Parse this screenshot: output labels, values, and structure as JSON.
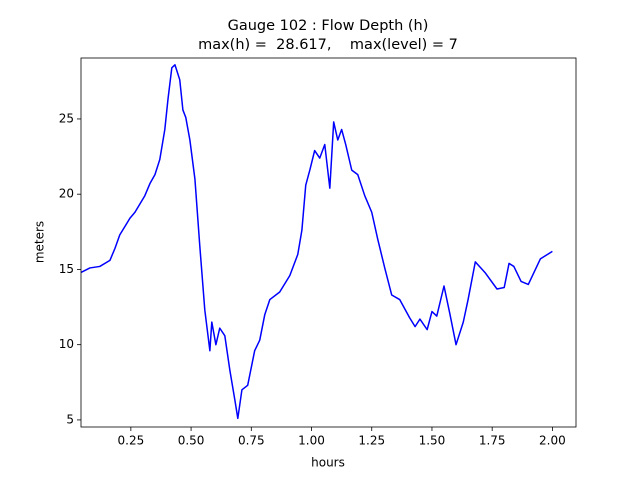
{
  "chart_data": {
    "type": "line",
    "title": [
      "Gauge 102 : Flow Depth (h)",
      "max(h) =  28.617,    max(level) = 7"
    ],
    "x_label": "hours",
    "y_label": "meters",
    "xlim": [
      0.043,
      2.098
    ],
    "ylim": [
      4.53,
      29.05
    ],
    "xticks": [
      0.25,
      {
        "value": 0.5,
        "label": "0.50"
      },
      0.75,
      {
        "value": 1.0,
        "label": "1.00"
      },
      1.25,
      {
        "value": 1.5,
        "label": "1.50"
      },
      1.75,
      {
        "value": 2.0,
        "label": "2.00"
      }
    ],
    "yticks": [
      5,
      10,
      15,
      20,
      25
    ],
    "grid": false,
    "series": [
      {
        "name": "h",
        "color": "#0000ff",
        "x": [
          0.043,
          0.08,
          0.121,
          0.163,
          0.184,
          0.204,
          0.246,
          0.267,
          0.308,
          0.329,
          0.35,
          0.37,
          0.391,
          0.404,
          0.42,
          0.433,
          0.453,
          0.466,
          0.478,
          0.495,
          0.516,
          0.536,
          0.557,
          0.578,
          0.586,
          0.603,
          0.619,
          0.64,
          0.661,
          0.682,
          0.694,
          0.711,
          0.735,
          0.764,
          0.785,
          0.806,
          0.827,
          0.868,
          0.91,
          0.943,
          0.96,
          0.976,
          0.993,
          1.013,
          1.034,
          1.055,
          1.076,
          1.092,
          1.109,
          1.125,
          1.142,
          1.167,
          1.192,
          1.221,
          1.25,
          1.275,
          1.304,
          1.333,
          1.366,
          1.407,
          1.43,
          1.45,
          1.48,
          1.5,
          1.52,
          1.55,
          1.575,
          1.6,
          1.63,
          1.65,
          1.68,
          1.72,
          1.77,
          1.8,
          1.82,
          1.84,
          1.87,
          1.9,
          1.95,
          1.98,
          2.0
        ],
        "values": [
          14.8,
          15.1,
          15.2,
          15.6,
          16.4,
          17.3,
          18.4,
          18.8,
          19.9,
          20.7,
          21.3,
          22.3,
          24.3,
          26.3,
          28.4,
          28.6,
          27.6,
          25.6,
          25.1,
          23.6,
          21.0,
          16.6,
          12.3,
          9.6,
          11.5,
          10.0,
          11.1,
          10.6,
          8.3,
          6.3,
          5.1,
          7.0,
          7.3,
          9.6,
          10.3,
          12.0,
          13.0,
          13.5,
          14.6,
          16.0,
          17.6,
          20.6,
          21.6,
          22.9,
          22.4,
          23.3,
          20.4,
          24.8,
          23.6,
          24.3,
          23.3,
          21.6,
          21.3,
          19.9,
          18.8,
          17.0,
          15.1,
          13.3,
          13.0,
          11.8,
          11.2,
          11.7,
          11.0,
          12.2,
          11.9,
          13.9,
          12.0,
          10.0,
          11.5,
          13.0,
          15.5,
          14.8,
          13.7,
          13.8,
          15.4,
          15.2,
          14.2,
          14.0,
          15.7,
          16.0,
          16.2
        ]
      }
    ]
  }
}
